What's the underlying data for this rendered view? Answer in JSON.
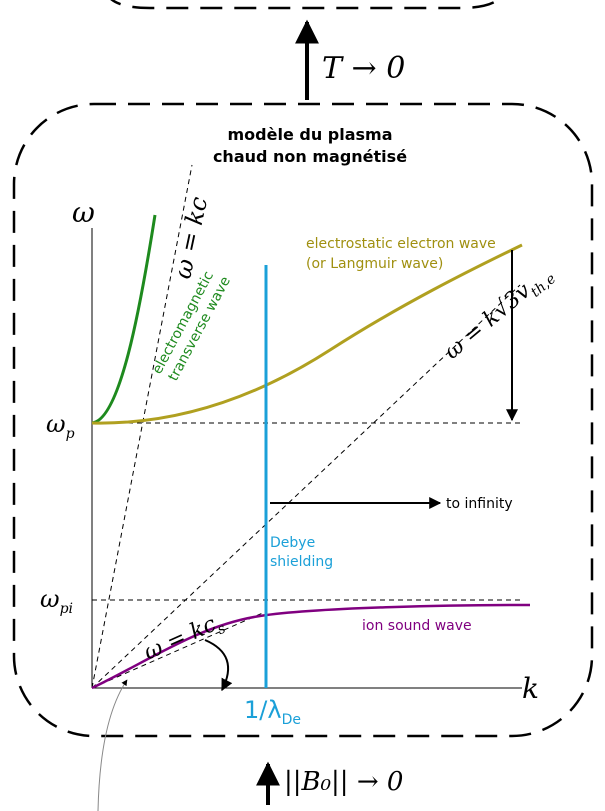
{
  "top_arrow": {
    "label": "T → 0"
  },
  "title": {
    "line1": "modèle du plasma",
    "line2": "chaud non magnétisé"
  },
  "axes": {
    "y": "ω",
    "x": "k"
  },
  "lines": {
    "light": {
      "lhs": "ω = k",
      "var": "c"
    },
    "thermal": {
      "lhs": "ω = k√3",
      "var": "v",
      "sub": "th,e"
    },
    "sound": {
      "lhs": "ω = k",
      "var": "c",
      "sub": "s"
    }
  },
  "levels": {
    "plasma": {
      "main": "ω",
      "sub": "p"
    },
    "ion": {
      "main": "ω",
      "sub": "pi"
    }
  },
  "waves": {
    "electrostatic": [
      "electrostatic electron wave",
      "(or Langmuir wave)"
    ],
    "electromagnetic": [
      "electromagnetic",
      "transverse wave"
    ],
    "ion_sound": "ion sound wave"
  },
  "debye": {
    "marker": {
      "main": "1/λ",
      "sub": "De"
    },
    "label": [
      "Debye",
      "shielding"
    ],
    "arrow": "to infinity"
  },
  "bottom_arrow": {
    "label": "||B₀|| → 0"
  }
}
